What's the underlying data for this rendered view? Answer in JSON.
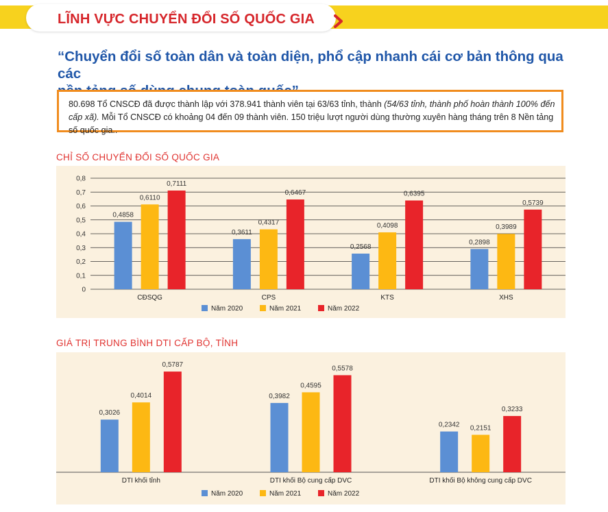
{
  "header": {
    "title": "LĨNH VỰC CHUYỂN ĐỔI SỐ QUỐC GIA",
    "icon": "chevron-right-icon",
    "title_color": "#d6262b",
    "band_color": "#f7d21e"
  },
  "quote": {
    "line1": "“Chuyển đổi số toàn dân và toàn diện, phổ cập nhanh cái cơ bản thông qua các",
    "line2": "nền tảng số dùng chung toàn quốc”"
  },
  "info": {
    "part1": "80.698 Tổ CNSCĐ đã được thành lập với 378.941 thành viên tại 63/63 tỉnh, thành ",
    "part2_italic": "(54/63 tỉnh, thành phố hoàn thành 100% đến cấp xã).",
    "part3": " Mỗi Tổ CNSCĐ có khoảng 04 đến 09 thành viên. 150 triệu lượt người dùng thường xuyên hàng tháng trên 8 Nền tảng số quốc gia.."
  },
  "chart_data": [
    {
      "type": "bar",
      "title": "CHỈ SỐ CHUYỂN ĐỔI SỐ QUỐC GIA",
      "categories": [
        "CĐSQG",
        "CPS",
        "KTS",
        "XHS"
      ],
      "series": [
        {
          "name": "Năm 2020",
          "color": "#5b8fd4",
          "values": [
            0.4858,
            0.3611,
            0.2568,
            0.2898
          ]
        },
        {
          "name": "Năm 2021",
          "color": "#fdb813",
          "values": [
            0.611,
            0.4317,
            0.4098,
            0.3989
          ]
        },
        {
          "name": "Năm 2022",
          "color": "#e8242a",
          "values": [
            0.7111,
            0.6467,
            0.6395,
            0.5739
          ]
        }
      ],
      "value_labels": [
        [
          "0,4858",
          "0,3611",
          "0,2568",
          "0,2898"
        ],
        [
          "0,6110",
          "0,4317",
          "0,4098",
          "0,3989"
        ],
        [
          "0,7111",
          "0,6467",
          "0,6395",
          "0,5739"
        ]
      ],
      "ylim": [
        0,
        0.8
      ],
      "yticks": [
        0,
        0.1,
        0.2,
        0.3,
        0.4,
        0.5,
        0.6,
        0.7,
        0.8
      ],
      "ytick_labels": [
        "0",
        "0,1",
        "0,2",
        "0,3",
        "0,4",
        "0,5",
        "0,6",
        "0,7",
        "0,8"
      ],
      "grid": true,
      "legend": "bottom"
    },
    {
      "type": "bar",
      "title": "GIÁ TRỊ TRUNG BÌNH DTI CẤP BỘ, TỈNH",
      "categories": [
        "DTI khối tỉnh",
        "DTI khối Bộ cung cấp DVC",
        "DTI khối Bộ không cung cấp DVC"
      ],
      "series": [
        {
          "name": "Năm 2020",
          "color": "#5b8fd4",
          "values": [
            0.3026,
            0.3982,
            0.2342
          ]
        },
        {
          "name": "Năm 2021",
          "color": "#fdb813",
          "values": [
            0.4014,
            0.4595,
            0.2151
          ]
        },
        {
          "name": "Năm 2022",
          "color": "#e8242a",
          "values": [
            0.5787,
            0.5578,
            0.3233
          ]
        }
      ],
      "value_labels": [
        [
          "0,3026",
          "0,3982",
          "0,2342"
        ],
        [
          "0,4014",
          "0,4595",
          "0,2151"
        ],
        [
          "0,5787",
          "0,5578",
          "0,3233"
        ]
      ],
      "ylim": [
        0,
        0.65
      ],
      "grid": false,
      "legend": "bottom"
    }
  ]
}
